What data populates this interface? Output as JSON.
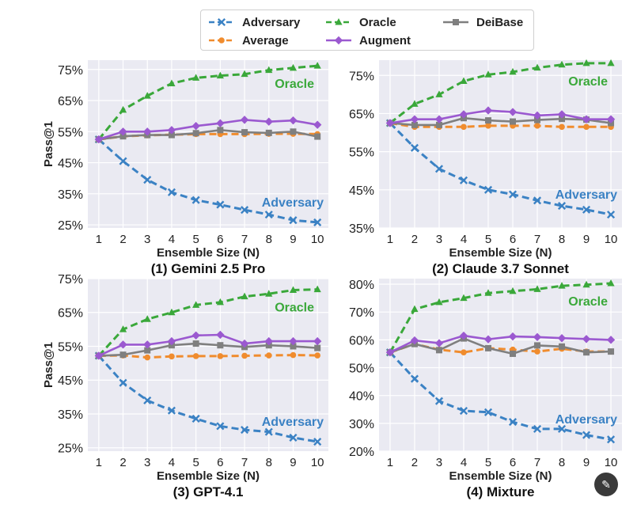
{
  "legend": {
    "items": [
      {
        "name": "Adversary",
        "color": "#3b82c4",
        "marker": "x",
        "dash": true
      },
      {
        "name": "Average",
        "color": "#f08c2e",
        "marker": "circle",
        "dash": true
      },
      {
        "name": "Oracle",
        "color": "#3aa83a",
        "marker": "triangle",
        "dash": true
      },
      {
        "name": "Augment",
        "color": "#9b59d0",
        "marker": "diamond",
        "dash": false
      },
      {
        "name": "DeiBase",
        "color": "#7f7f7f",
        "marker": "square",
        "dash": false
      }
    ]
  },
  "corner_icon": "magic-wand-icon",
  "chart_data": [
    {
      "type": "line",
      "title": "(1) Gemini 2.5 Pro",
      "xlabel": "Ensemble Size (N)",
      "ylabel": "Pass@1",
      "x": [
        1,
        2,
        3,
        4,
        5,
        6,
        7,
        8,
        9,
        10
      ],
      "ylim": [
        24,
        78
      ],
      "yticks": [
        25,
        35,
        45,
        55,
        65,
        75
      ],
      "annotations": {
        "Oracle": "Oracle",
        "Adversary": "Adversary"
      },
      "series": [
        {
          "name": "Adversary",
          "values": [
            52.5,
            45.5,
            39.5,
            35.5,
            33,
            31.5,
            29.8,
            28.3,
            26.5,
            25.8
          ]
        },
        {
          "name": "Average",
          "values": [
            52.5,
            53.5,
            53.8,
            54,
            54.2,
            54.2,
            54.2,
            54.3,
            54.3,
            54.2
          ]
        },
        {
          "name": "Oracle",
          "values": [
            52.5,
            62,
            66.5,
            70.5,
            72.3,
            73,
            73.5,
            74.8,
            75.5,
            76.2
          ]
        },
        {
          "name": "Augment",
          "values": [
            52.5,
            55,
            55,
            55.5,
            56.8,
            57.7,
            58.8,
            58.2,
            58.6,
            57.2
          ]
        },
        {
          "name": "DeiBase",
          "values": [
            52.5,
            53.5,
            53.9,
            53.9,
            54.5,
            55.5,
            54.8,
            54.6,
            55,
            53.4
          ]
        }
      ]
    },
    {
      "type": "line",
      "title": "(2) Claude 3.7 Sonnet",
      "xlabel": "Ensemble Size (N)",
      "ylabel": "",
      "x": [
        1,
        2,
        3,
        4,
        5,
        6,
        7,
        8,
        9,
        10
      ],
      "ylim": [
        35,
        79
      ],
      "yticks": [
        35,
        45,
        55,
        65,
        75
      ],
      "annotations": {
        "Oracle": "Oracle",
        "Adversary": "Adversary"
      },
      "series": [
        {
          "name": "Adversary",
          "values": [
            62.5,
            56,
            50.5,
            47.5,
            45,
            43.8,
            42.2,
            40.8,
            39.8,
            38.5
          ]
        },
        {
          "name": "Average",
          "values": [
            62.5,
            61.5,
            61.5,
            61.5,
            61.8,
            61.8,
            61.8,
            61.5,
            61.5,
            61.5
          ]
        },
        {
          "name": "Oracle",
          "values": [
            62.5,
            67.5,
            70,
            73.5,
            75.2,
            75.9,
            77,
            77.8,
            78.2,
            78.2
          ]
        },
        {
          "name": "Augment",
          "values": [
            62.5,
            63.5,
            63.5,
            64.8,
            65.8,
            65.4,
            64.5,
            64.8,
            63.5,
            63.5
          ]
        },
        {
          "name": "DeiBase",
          "values": [
            62.5,
            62,
            62,
            63.8,
            63.2,
            62.9,
            63.3,
            63.6,
            63.4,
            62.5
          ]
        }
      ]
    },
    {
      "type": "line",
      "title": "(3) GPT-4.1",
      "xlabel": "Ensemble Size (N)",
      "ylabel": "Pass@1",
      "x": [
        1,
        2,
        3,
        4,
        5,
        6,
        7,
        8,
        9,
        10
      ],
      "ylim": [
        24,
        75
      ],
      "yticks": [
        25,
        35,
        45,
        55,
        65,
        75
      ],
      "annotations": {
        "Oracle": "Oracle",
        "Adversary": "Adversary"
      },
      "series": [
        {
          "name": "Adversary",
          "values": [
            52.2,
            44.2,
            39,
            36,
            33.6,
            31.4,
            30.3,
            29.7,
            28,
            26.8
          ]
        },
        {
          "name": "Average",
          "values": [
            52.2,
            52.3,
            51.7,
            52,
            52.1,
            52.1,
            52.2,
            52.3,
            52.4,
            52.3
          ]
        },
        {
          "name": "Oracle",
          "values": [
            52.2,
            60,
            63,
            65,
            67.2,
            68,
            69.7,
            70.5,
            71.6,
            71.8
          ]
        },
        {
          "name": "Augment",
          "values": [
            52.2,
            55.5,
            55.5,
            56.5,
            58.2,
            58.4,
            55.8,
            56.5,
            56.5,
            56.5
          ]
        },
        {
          "name": "DeiBase",
          "values": [
            52.2,
            52.5,
            53.8,
            55.3,
            55.8,
            55.3,
            54.8,
            55.3,
            55,
            54.5
          ]
        }
      ]
    },
    {
      "type": "line",
      "title": "(4) Mixture",
      "xlabel": "Ensemble Size (N)",
      "ylabel": "",
      "x": [
        1,
        2,
        3,
        4,
        5,
        6,
        7,
        8,
        9,
        10
      ],
      "ylim": [
        20,
        82
      ],
      "yticks": [
        20,
        30,
        40,
        50,
        60,
        70,
        80
      ],
      "tick_suffix": "%",
      "annotations": {
        "Oracle": "Oracle",
        "Adversary": "Adversary"
      },
      "series": [
        {
          "name": "Adversary",
          "values": [
            55.5,
            46,
            38,
            34.5,
            34,
            30.5,
            28,
            28,
            25.8,
            24.2
          ]
        },
        {
          "name": "Average",
          "values": [
            55.5,
            58.5,
            56.5,
            55.5,
            57,
            56.5,
            55.8,
            56.8,
            55.8,
            55.8
          ]
        },
        {
          "name": "Oracle",
          "values": [
            55.5,
            71,
            73.5,
            75,
            76.8,
            77.5,
            78.2,
            79.4,
            79.8,
            80.3
          ]
        },
        {
          "name": "Augment",
          "values": [
            55.5,
            59.8,
            58.8,
            61.5,
            60.2,
            61.2,
            61,
            60.6,
            60.3,
            60
          ]
        },
        {
          "name": "DeiBase",
          "values": [
            55.5,
            58.5,
            56.3,
            60.5,
            57,
            55,
            58,
            57.6,
            55.5,
            55.8
          ]
        }
      ]
    }
  ]
}
